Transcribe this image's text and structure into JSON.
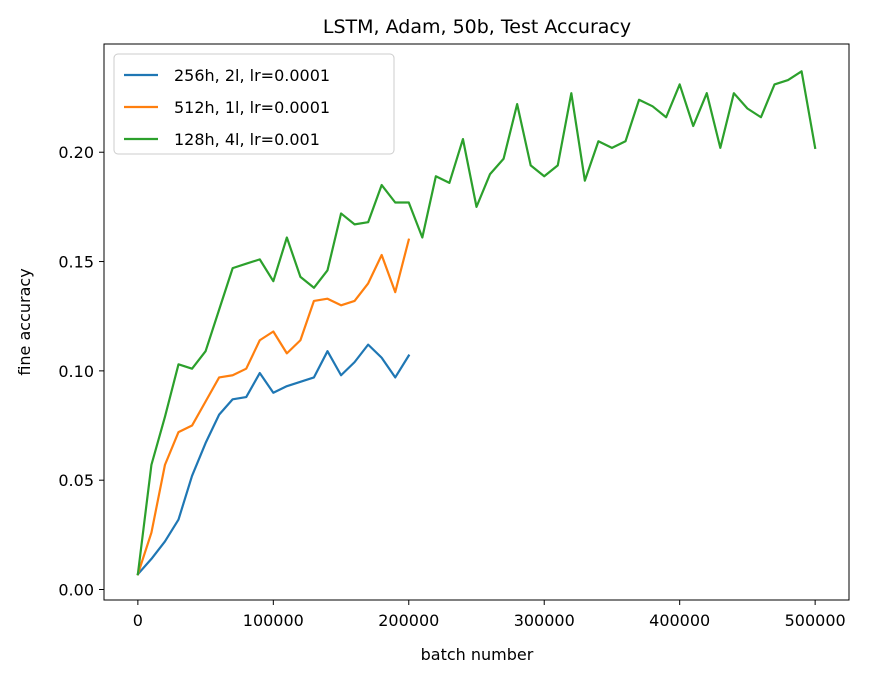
{
  "chart_data": {
    "type": "line",
    "title": "LSTM, Adam, 50b, Test Accuracy",
    "xlabel": "batch number",
    "ylabel": "fine accuracy",
    "xlim": [
      -25000,
      525000
    ],
    "ylim": [
      -0.0048,
      0.2495
    ],
    "xticks": [
      0,
      100000,
      200000,
      300000,
      400000,
      500000
    ],
    "xtick_labels": [
      "0",
      "100000",
      "200000",
      "300000",
      "400000",
      "500000"
    ],
    "yticks": [
      0.0,
      0.05,
      0.1,
      0.15,
      0.2
    ],
    "ytick_labels": [
      "0.00",
      "0.05",
      "0.10",
      "0.15",
      "0.20"
    ],
    "grid": false,
    "legend_position": "top-left",
    "series": [
      {
        "name": "256h, 2l, lr=0.0001",
        "color": "#1f77b4",
        "x": [
          0,
          10000,
          20000,
          30000,
          40000,
          50000,
          60000,
          70000,
          80000,
          90000,
          100000,
          110000,
          120000,
          130000,
          140000,
          150000,
          160000,
          170000,
          180000,
          190000,
          200000
        ],
        "y": [
          0.007,
          0.014,
          0.022,
          0.032,
          0.052,
          0.067,
          0.08,
          0.087,
          0.088,
          0.099,
          0.09,
          0.093,
          0.095,
          0.097,
          0.109,
          0.098,
          0.104,
          0.112,
          0.106,
          0.097,
          0.107
        ]
      },
      {
        "name": "512h, 1l, lr=0.0001",
        "color": "#ff7f0e",
        "x": [
          0,
          10000,
          20000,
          30000,
          40000,
          50000,
          60000,
          70000,
          80000,
          90000,
          100000,
          110000,
          120000,
          130000,
          140000,
          150000,
          160000,
          170000,
          180000,
          190000,
          200000
        ],
        "y": [
          0.007,
          0.026,
          0.057,
          0.072,
          0.075,
          0.086,
          0.097,
          0.098,
          0.101,
          0.114,
          0.118,
          0.108,
          0.114,
          0.132,
          0.133,
          0.13,
          0.132,
          0.14,
          0.153,
          0.136,
          0.16
        ]
      },
      {
        "name": "128h, 4l, lr=0.001",
        "color": "#2ca02c",
        "x": [
          0,
          10000,
          20000,
          30000,
          40000,
          50000,
          60000,
          70000,
          80000,
          90000,
          100000,
          110000,
          120000,
          130000,
          140000,
          150000,
          160000,
          170000,
          180000,
          190000,
          200000,
          210000,
          220000,
          230000,
          240000,
          250000,
          260000,
          270000,
          280000,
          290000,
          300000,
          310000,
          320000,
          330000,
          340000,
          350000,
          360000,
          370000,
          380000,
          390000,
          400000,
          410000,
          420000,
          430000,
          440000,
          450000,
          460000,
          470000,
          480000,
          490000,
          500000
        ],
        "y": [
          0.007,
          0.057,
          0.079,
          0.103,
          0.101,
          0.109,
          0.128,
          0.147,
          0.149,
          0.151,
          0.141,
          0.161,
          0.143,
          0.138,
          0.146,
          0.172,
          0.167,
          0.168,
          0.185,
          0.177,
          0.177,
          0.161,
          0.189,
          0.186,
          0.206,
          0.175,
          0.19,
          0.197,
          0.222,
          0.194,
          0.189,
          0.194,
          0.227,
          0.187,
          0.205,
          0.202,
          0.205,
          0.224,
          0.221,
          0.216,
          0.231,
          0.212,
          0.227,
          0.202,
          0.227,
          0.22,
          0.216,
          0.231,
          0.233,
          0.237,
          0.202
        ]
      }
    ]
  }
}
